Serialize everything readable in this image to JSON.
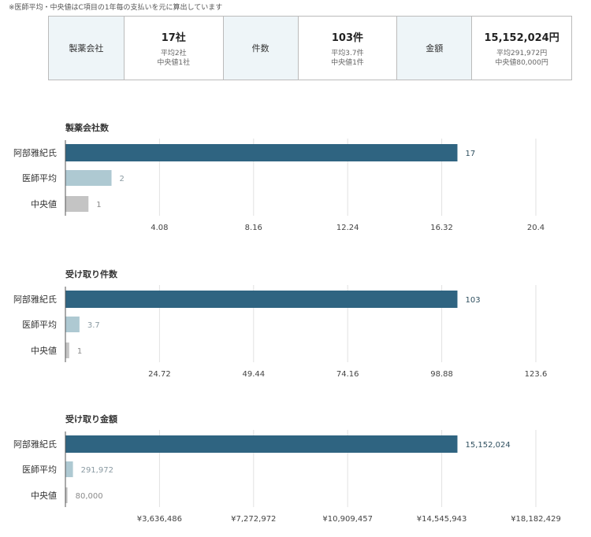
{
  "note": "※医師平均・中央値はC項目の1年毎の支払いを元に算出しています",
  "summary": [
    {
      "label": "製薬会社",
      "value": "17社",
      "avg": "平均2社",
      "median": "中央値1社"
    },
    {
      "label": "件数",
      "value": "103件",
      "avg": "平均3.7件",
      "median": "中央値1件"
    },
    {
      "label": "金額",
      "value": "15,152,024円",
      "avg": "平均291,972円",
      "median": "中央値80,000円"
    }
  ],
  "colors": {
    "primary": "#2f6481",
    "average": "#aec9d2",
    "median": "#c4c4c4"
  },
  "chart_data": [
    {
      "type": "bar",
      "orientation": "horizontal",
      "title": "製薬会社数",
      "categories": [
        "阿部雅紀氏",
        "医師平均",
        "中央値"
      ],
      "values": [
        17,
        2,
        1
      ],
      "value_labels": [
        "17",
        "2",
        "1"
      ],
      "xlim": [
        0,
        20.4
      ],
      "ticks": [
        4.08,
        8.16,
        12.24,
        16.32,
        20.4
      ],
      "tick_labels": [
        "4.08",
        "8.16",
        "12.24",
        "16.32",
        "20.4"
      ],
      "grid": true
    },
    {
      "type": "bar",
      "orientation": "horizontal",
      "title": "受け取り件数",
      "categories": [
        "阿部雅紀氏",
        "医師平均",
        "中央値"
      ],
      "values": [
        103,
        3.7,
        1
      ],
      "value_labels": [
        "103",
        "3.7",
        "1"
      ],
      "xlim": [
        0,
        123.6
      ],
      "ticks": [
        24.72,
        49.44,
        74.16,
        98.88,
        123.6
      ],
      "tick_labels": [
        "24.72",
        "49.44",
        "74.16",
        "98.88",
        "123.6"
      ],
      "grid": true
    },
    {
      "type": "bar",
      "orientation": "horizontal",
      "title": "受け取り金額",
      "categories": [
        "阿部雅紀氏",
        "医師平均",
        "中央値"
      ],
      "values": [
        15152024,
        291972,
        80000
      ],
      "value_labels": [
        "15,152,024",
        "291,972",
        "80,000"
      ],
      "xlim": [
        0,
        18182429
      ],
      "ticks": [
        3636486,
        7272972,
        10909457,
        14545943,
        18182429
      ],
      "tick_labels": [
        "¥3,636,486",
        "¥7,272,972",
        "¥10,909,457",
        "¥14,545,943",
        "¥18,182,429"
      ],
      "grid": true
    }
  ]
}
